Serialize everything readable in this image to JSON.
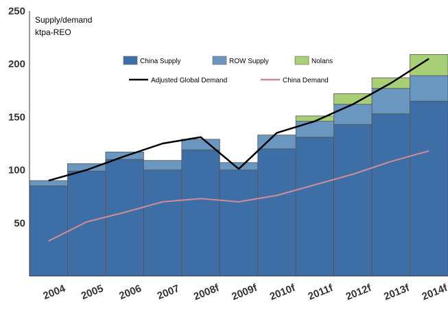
{
  "chart_data": {
    "type": "bar",
    "stacked": true,
    "categories": [
      "2004",
      "2005",
      "2006",
      "2007",
      "2008f",
      "2009f",
      "2010f",
      "2011f",
      "2012f",
      "2013f",
      "2014f"
    ],
    "ylabel_line1": "Supply/demand",
    "ylabel_line2": "ktpa-REO",
    "ylim": [
      0,
      250
    ],
    "yticks": [
      50,
      100,
      150,
      200,
      250
    ],
    "grid": false,
    "legend_position": "top-center",
    "series": [
      {
        "name": "China Supply",
        "kind": "bar",
        "color": "#3d6fa6",
        "values": [
          85,
          99,
          110,
          100,
          119,
          100,
          120,
          131,
          143,
          153,
          165
        ]
      },
      {
        "name": "ROW Supply",
        "kind": "bar",
        "color": "#6a97c0",
        "values": [
          5,
          7,
          7,
          9,
          10,
          7,
          13,
          15,
          19,
          24,
          24
        ]
      },
      {
        "name": "Nolans",
        "kind": "bar",
        "color": "#a8cf76",
        "values": [
          0,
          0,
          0,
          0,
          0,
          0,
          0,
          5,
          10,
          10,
          20
        ]
      },
      {
        "name": "Adjusted Global Demand",
        "kind": "line",
        "color": "#000000",
        "values": [
          90,
          100,
          113,
          125,
          131,
          101,
          135,
          146,
          162,
          182,
          205
        ]
      },
      {
        "name": "China Demand",
        "kind": "line",
        "color": "#c98a9a",
        "values": [
          33,
          51,
          60,
          70,
          73,
          70,
          76,
          86,
          96,
          108,
          118
        ]
      }
    ]
  }
}
